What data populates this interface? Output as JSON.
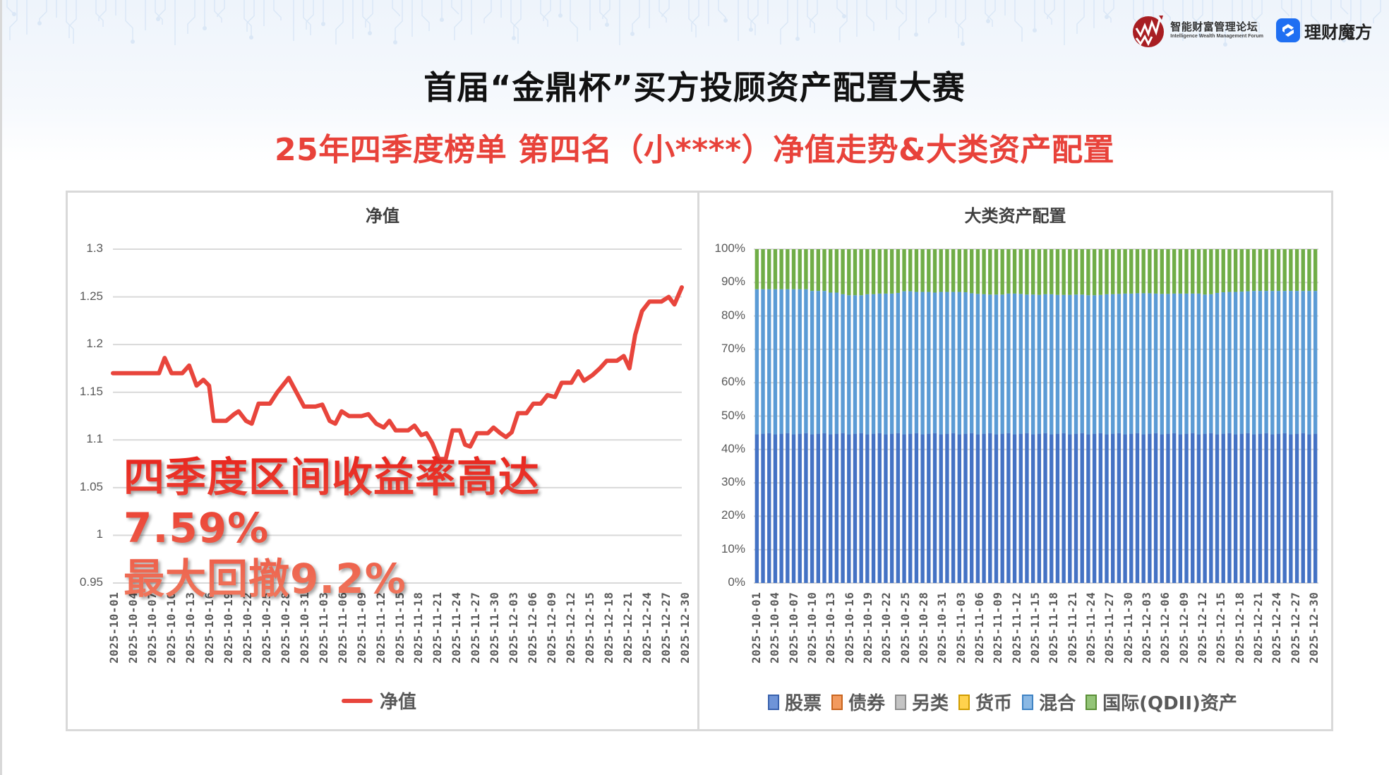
{
  "header": {
    "logo_iwm_cn": "智能财富管理论坛",
    "logo_iwm_en": "Intelligence Wealth Management Forum",
    "logo_lcmf": "理财魔方",
    "title": "首届“金鼎杯”买方投顾资产配置大赛",
    "subtitle": "25年四季度榜单 第四名（小****）净值走势&大类资产配置"
  },
  "colors": {
    "accent_red": "#e8423a",
    "line": "#e8453c",
    "stock": "#4472c4",
    "bond": "#ed7d31",
    "alternative": "#a5a5a5",
    "money": "#ffc000",
    "mixed": "#5b9bd5",
    "qdii": "#70ad47"
  },
  "annotation": {
    "line1": "四季度区间收益率高达",
    "line2": "7.59%",
    "line3": "最大回撤9.2%"
  },
  "chart_data": [
    {
      "type": "line",
      "title": "净值",
      "xlabel": "",
      "ylabel": "",
      "ylim": [
        0.95,
        1.3
      ],
      "yticks": [
        "1.3",
        "1.25",
        "1.2",
        "1.15",
        "1.1",
        "1.05",
        "1",
        "0.95"
      ],
      "xticks": [
        "2025-10-01",
        "2025-10-04",
        "2025-10-07",
        "2025-10-10",
        "2025-10-13",
        "2025-10-16",
        "2025-10-19",
        "2025-10-22",
        "2025-10-25",
        "2025-10-28",
        "2025-10-31",
        "2025-11-03",
        "2025-11-06",
        "2025-11-09",
        "2025-11-12",
        "2025-11-15",
        "2025-11-18",
        "2025-11-21",
        "2025-11-24",
        "2025-11-27",
        "2025-11-30",
        "2025-12-03",
        "2025-12-06",
        "2025-12-09",
        "2025-12-12",
        "2025-12-15",
        "2025-12-18",
        "2025-12-21",
        "2025-12-24",
        "2025-12-27",
        "2025-12-30"
      ],
      "grid": true,
      "legend": [
        "净值"
      ],
      "legend_position": "bottom",
      "series": [
        {
          "name": "净值",
          "x_frac": [
            0,
            0.081,
            0.091,
            0.103,
            0.122,
            0.134,
            0.147,
            0.159,
            0.169,
            0.177,
            0.199,
            0.213,
            0.221,
            0.234,
            0.244,
            0.256,
            0.276,
            0.289,
            0.309,
            0.336,
            0.356,
            0.368,
            0.381,
            0.391,
            0.402,
            0.415,
            0.437,
            0.449,
            0.463,
            0.476,
            0.486,
            0.497,
            0.519,
            0.53,
            0.542,
            0.551,
            0.561,
            0.573,
            0.585,
            0.597,
            0.61,
            0.619,
            0.628,
            0.64,
            0.659,
            0.669,
            0.681,
            0.691,
            0.701,
            0.712,
            0.727,
            0.739,
            0.752,
            0.764,
            0.777,
            0.789,
            0.806,
            0.818,
            0.828,
            0.843,
            0.856,
            0.868,
            0.886,
            0.898,
            0.908,
            0.918,
            0.93,
            0.943,
            0.964,
            0.977,
            0.987,
            1.0
          ],
          "values": [
            1.17,
            1.17,
            1.186,
            1.17,
            1.17,
            1.178,
            1.157,
            1.163,
            1.157,
            1.12,
            1.12,
            1.127,
            1.13,
            1.12,
            1.117,
            1.138,
            1.138,
            1.15,
            1.165,
            1.135,
            1.135,
            1.137,
            1.12,
            1.117,
            1.13,
            1.125,
            1.125,
            1.127,
            1.117,
            1.113,
            1.12,
            1.11,
            1.11,
            1.115,
            1.105,
            1.107,
            1.097,
            1.08,
            1.08,
            1.11,
            1.11,
            1.095,
            1.093,
            1.107,
            1.107,
            1.113,
            1.107,
            1.103,
            1.108,
            1.128,
            1.128,
            1.138,
            1.138,
            1.147,
            1.145,
            1.16,
            1.16,
            1.172,
            1.162,
            1.168,
            1.175,
            1.183,
            1.183,
            1.188,
            1.175,
            1.21,
            1.235,
            1.245,
            1.245,
            1.25,
            1.242,
            1.26
          ]
        }
      ]
    },
    {
      "type": "bar",
      "stacked": "percent",
      "title": "大类资产配置",
      "ylim": [
        0,
        100
      ],
      "yticks": [
        "100%",
        "90%",
        "80%",
        "70%",
        "60%",
        "50%",
        "40%",
        "30%",
        "20%",
        "10%",
        "0%"
      ],
      "xticks": [
        "2025-10-01",
        "2025-10-04",
        "2025-10-07",
        "2025-10-10",
        "2025-10-13",
        "2025-10-16",
        "2025-10-19",
        "2025-10-22",
        "2025-10-25",
        "2025-10-28",
        "2025-10-31",
        "2025-11-03",
        "2025-11-06",
        "2025-11-09",
        "2025-11-12",
        "2025-11-15",
        "2025-11-18",
        "2025-11-21",
        "2025-11-24",
        "2025-11-27",
        "2025-11-30",
        "2025-12-03",
        "2025-12-06",
        "2025-12-09",
        "2025-12-12",
        "2025-12-15",
        "2025-12-18",
        "2025-12-21",
        "2025-12-24",
        "2025-12-27",
        "2025-12-30"
      ],
      "grid": true,
      "legend_position": "bottom",
      "bar_count": 92,
      "series": [
        {
          "name": "股票",
          "approx_value": 44.5
        },
        {
          "name": "债券",
          "approx_value": 0
        },
        {
          "name": "另类",
          "approx_value": 0
        },
        {
          "name": "货币",
          "approx_value": 0
        },
        {
          "name": "混合",
          "approx_range": [
            41.5,
            43.5
          ],
          "approx_top_profile": [
            88,
            88,
            88,
            88,
            88,
            88,
            88,
            88,
            88,
            87.5,
            87.5,
            87.5,
            87,
            87,
            86.5,
            86.2,
            86.2,
            86.2,
            86.5,
            86.5,
            86.7,
            86.7,
            86.7,
            86.9,
            87.4,
            87.4,
            87.2,
            87.2,
            87.2,
            87,
            87.2,
            87.2,
            87.2,
            87.2,
            87.1,
            86.8,
            86.6,
            86.5,
            86.4,
            86.4,
            86.4,
            86.7,
            86.7,
            86.6,
            86.4,
            86.4,
            86.3,
            86.5,
            86.5,
            86.3,
            86.3,
            86.3,
            86.4,
            86.4,
            86.2,
            86.2,
            86.3,
            86.5,
            86.5,
            86.6,
            86.7,
            86.7,
            86.8,
            86.8,
            86.8,
            86.7,
            86.6,
            86.6,
            86.7,
            86.7,
            86.7,
            86.7,
            86.7,
            86.4,
            86.5,
            86.9,
            87.1,
            87.2,
            87.2,
            87.3,
            87.4,
            87.5
          ]
        },
        {
          "name": "国际(QDII)资产",
          "approx_range": [
            12,
            14
          ]
        }
      ],
      "legend": [
        "股票",
        "债券",
        "另类",
        "货币",
        "混合",
        "国际(QDII)资产"
      ]
    }
  ]
}
